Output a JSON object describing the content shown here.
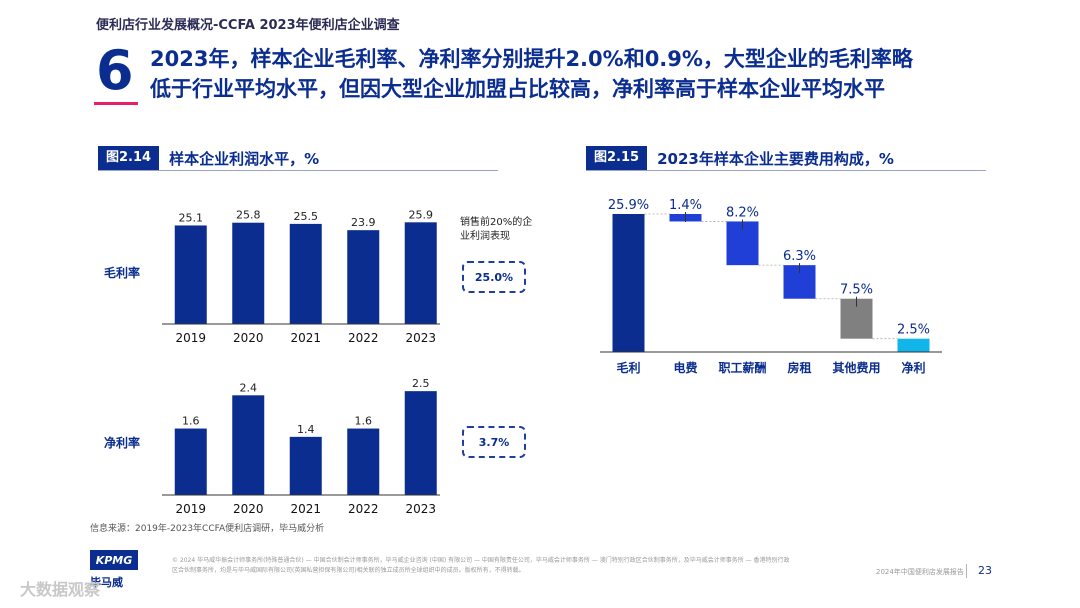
{
  "header": {
    "breadcrumb": "便利店行业发展概况-CCFA 2023年便利店企业调查",
    "section_number": "6",
    "headline_line1": "2023年，样本企业毛利率、净利率分别提升2.0%和0.9%，大型企业的毛利率略",
    "headline_line2": "低于行业平均水平，但因大型企业加盟占比较高，净利率高于样本企业平均水平"
  },
  "figure_left": {
    "tag": "图2.14",
    "title": "样本企业利润水平，%"
  },
  "figure_right": {
    "tag": "图2.15",
    "title": "2023年样本企业主要费用构成，%"
  },
  "side": {
    "top20_label": "销售前20%的企业利润表现",
    "gross_top20": "25.0%",
    "net_top20": "3.7%"
  },
  "source_note": "信息来源：2019年-2023年CCFA便利店调研，毕马威分析",
  "footer": {
    "legal": "© 2024 毕马威华振会计师事务所(特殊普通合伙) — 中国合伙制会计师事务所，毕马威企业咨询 (中国) 有限公司 — 中国有限责任公司，毕马威会计师事务所 — 澳门特别行政区合伙制事务所，及毕马威会计师事务所 — 香港特别行政区合伙制事务所，均是与毕马威国际有限公司(英国私营担保有限公司)相关联的独立成员所全球组织中的成员。版权所有，不得转载。",
    "report_name": "2024年中国便利店发展报告",
    "page_number": "23",
    "logo_text": "KPMG",
    "logo_cn": "毕马威",
    "watermark": "大数据观察"
  },
  "colors": {
    "primary": "#0a2d8f",
    "mid_blue": "#1f3fd6",
    "gray": "#808080",
    "cyan": "#12b5ea",
    "accent": "#e8206a"
  },
  "chart_data": [
    {
      "type": "bar",
      "title": "毛利率",
      "categories": [
        "2019",
        "2020",
        "2021",
        "2022",
        "2023"
      ],
      "values": [
        25.1,
        25.8,
        25.5,
        23.9,
        25.9
      ],
      "value_labels": [
        "25.1",
        "25.8",
        "25.5",
        "23.9",
        "25.9"
      ],
      "ylim": [
        0,
        27
      ]
    },
    {
      "type": "bar",
      "title": "净利率",
      "categories": [
        "2019",
        "2020",
        "2021",
        "2022",
        "2023"
      ],
      "values": [
        1.6,
        2.4,
        1.4,
        1.6,
        2.5
      ],
      "value_labels": [
        "1.6",
        "2.4",
        "1.4",
        "1.6",
        "2.5"
      ],
      "ylim": [
        0,
        2.6
      ]
    },
    {
      "type": "bar",
      "subtype": "waterfall",
      "title": "2023年样本企业主要费用构成，%",
      "categories": [
        "毛利",
        "电费",
        "职工薪酬",
        "房租",
        "其他费用",
        "净利"
      ],
      "values": [
        25.9,
        1.4,
        8.2,
        6.3,
        7.5,
        2.5
      ],
      "value_labels": [
        "25.9%",
        "1.4%",
        "8.2%",
        "6.3%",
        "7.5%",
        "2.5%"
      ],
      "colors": [
        "#0a2d8f",
        "#1f3fd6",
        "#1f3fd6",
        "#1f3fd6",
        "#808080",
        "#12b5ea"
      ],
      "ylim": [
        0,
        27
      ]
    }
  ]
}
